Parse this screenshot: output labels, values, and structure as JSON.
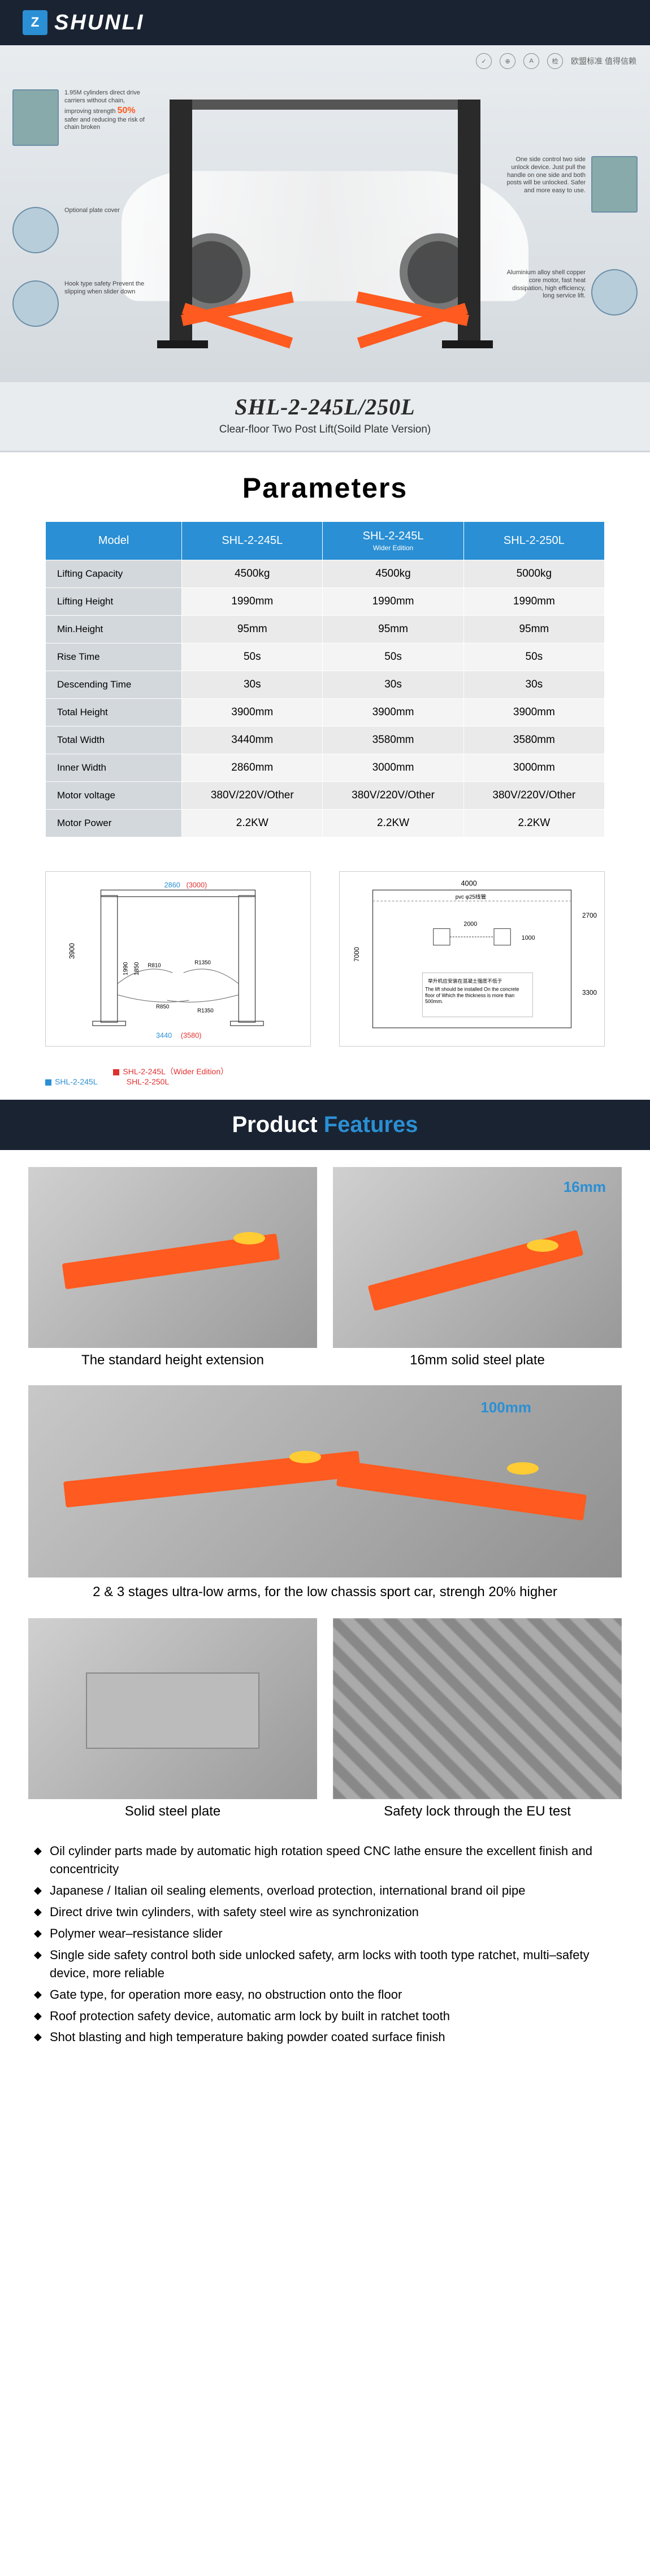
{
  "brand": {
    "mark": "Z",
    "name": "SHUNLI"
  },
  "certs": {
    "text": "欧盟标准 值得信赖"
  },
  "hero": {
    "callouts": {
      "c1": {
        "text_pre": "1.95M cylinders direct drive carriers without chain, improving strength",
        "pct": "50%",
        "text_post": "safer and reducing the risk of chain broken"
      },
      "c2": {
        "text": "Optional plate cover"
      },
      "c3": {
        "text": "Hook type safety Prevent the slipping when slider down"
      },
      "c4": {
        "text": "One side control two side unlock device. Just pull the handle on one side and both posts will be unlocked. Safer and more easy to use."
      },
      "c5": {
        "text": "Aluminium alloy shell copper core motor, fast heat dissipation, high efficiency, long service lift."
      }
    },
    "model": "SHL-2-245L/250L",
    "subtitle": "Clear-floor Two Post Lift(Soild Plate Version)"
  },
  "parameters": {
    "title": "Parameters",
    "headers": [
      "Model",
      "SHL-2-245L",
      "SHL-2-245L",
      "SHL-2-250L"
    ],
    "header_sub": "Wider Edition",
    "rows": [
      {
        "label": "Lifting Capacity",
        "v": [
          "4500kg",
          "4500kg",
          "5000kg"
        ]
      },
      {
        "label": "Lifting Height",
        "v": [
          "1990mm",
          "1990mm",
          "1990mm"
        ]
      },
      {
        "label": "Min.Height",
        "v": [
          "95mm",
          "95mm",
          "95mm"
        ]
      },
      {
        "label": "Rise Time",
        "v": [
          "50s",
          "50s",
          "50s"
        ]
      },
      {
        "label": "Descending Time",
        "v": [
          "30s",
          "30s",
          "30s"
        ]
      },
      {
        "label": "Total Height",
        "v": [
          "3900mm",
          "3900mm",
          "3900mm"
        ]
      },
      {
        "label": "Total Width",
        "v": [
          "3440mm",
          "3580mm",
          "3580mm"
        ]
      },
      {
        "label": "Inner Width",
        "v": [
          "2860mm",
          "3000mm",
          "3000mm"
        ]
      },
      {
        "label": "Motor voltage",
        "v": [
          "380V/220V/Other",
          "380V/220V/Other",
          "380V/220V/Other"
        ]
      },
      {
        "label": "Motor Power",
        "v": [
          "2.2KW",
          "2.2KW",
          "2.2KW"
        ]
      }
    ]
  },
  "diagrams": {
    "d1": {
      "inner_w_blue": "2860",
      "inner_w_red": "(3000)",
      "total_w_blue": "3440",
      "total_w_red": "(3580)",
      "total_h": "3900",
      "h1": "1990",
      "h2": "1850",
      "r1": "R810",
      "r2": "R1350",
      "r3": "R850",
      "r4": "R1350"
    },
    "d2": {
      "w_top": "4000",
      "pvc": "pvc φ25线管",
      "h_right_top": "2700",
      "gap": "2000",
      "h_gap": "1000",
      "h_left": "7000",
      "h_right_bot": "3300",
      "note_cn": "举升机应安装在混凝土强度不低于",
      "note_en": "The lift should be installed On the concrete floor of Which the thickness is more than 500mm."
    },
    "legend": {
      "l1": {
        "color": "#2a8fd4",
        "text": "SHL-2-245L"
      },
      "l2": {
        "color": "#e03030",
        "text": "SHL-2-245L（Wider Edition）"
      },
      "l3": {
        "text": "SHL-2-250L"
      }
    }
  },
  "features": {
    "title_w": "Product ",
    "title_b": "Features",
    "row1": {
      "cap_l": "The standard height extension",
      "cap_r": "16mm solid steel plate",
      "dim_r": "16mm"
    },
    "row2": {
      "cap": "2 & 3 stages ultra-low arms, for the low chassis sport car, strengh 20% higher",
      "dim": "100mm"
    },
    "row3": {
      "cap_l": "Solid steel plate",
      "cap_r": "Safety lock through the EU test"
    }
  },
  "bullets": [
    "Oil cylinder parts made by automatic high rotation speed CNC lathe ensure the excellent finish and concentricity",
    "Japanese / Italian oil sealing elements, overload protection, international brand oil pipe",
    "Direct drive twin cylinders, with safety steel wire as synchronization",
    "Polymer wear–resistance slider",
    "Single side safety control both side unlocked safety, arm locks with tooth type ratchet, multi–safety device, more reliable",
    "Gate type, for operation more easy, no obstruction onto the floor",
    "Roof protection safety device, automatic arm lock by built in ratchet tooth",
    "Shot blasting and high temperature baking powder coated surface finish"
  ]
}
